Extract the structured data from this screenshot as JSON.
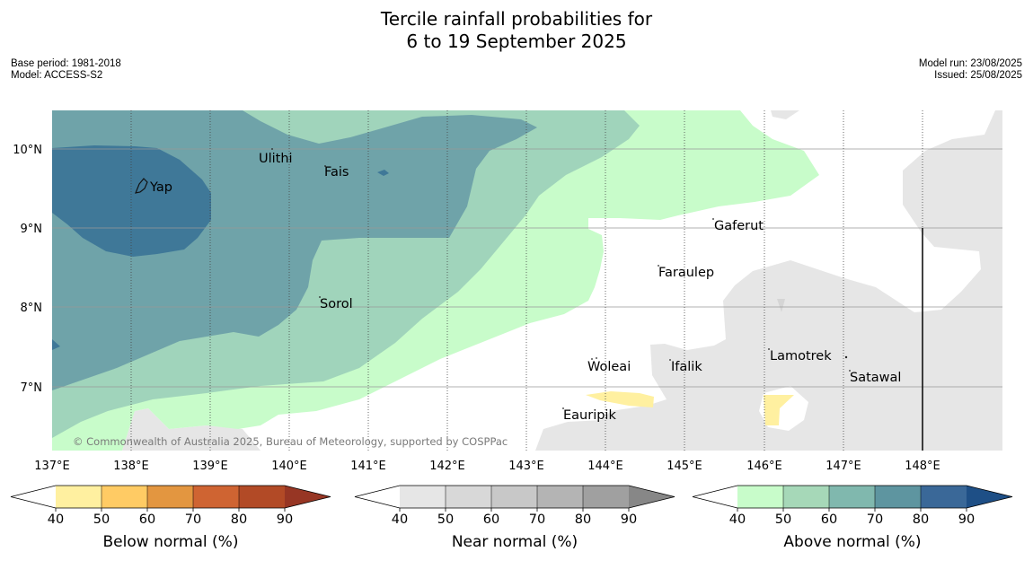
{
  "title_line1": "Tercile rainfall probabilities for",
  "title_line2": "6 to 19 September 2025",
  "base_period": "Base period: 1981-2018",
  "model": "Model: ACCESS-S2",
  "model_run": "Model run: 23/08/2025",
  "issued": "Issued: 25/08/2025",
  "copyright": "© Commonwealth of Australia 2025, Bureau of Meteorology, supported by COSPPac",
  "lat_labels": [
    "10°N",
    "9°N",
    "8°N",
    "7°N"
  ],
  "lon_labels": [
    "137°E",
    "138°E",
    "139°E",
    "140°E",
    "141°E",
    "142°E",
    "143°E",
    "144°E",
    "145°E",
    "146°E",
    "147°E",
    "148°E"
  ],
  "places": [
    "Ulithi",
    "Fais",
    "Yap",
    "Gaferut",
    "Faraulep",
    "Sorol",
    "Woleai",
    "Ifalik",
    "Lamotrek",
    "Satawal",
    "Eauripik"
  ],
  "colorbars": [
    {
      "label": "Below normal (%)",
      "ticks": [
        "40",
        "50",
        "60",
        "70",
        "80",
        "90"
      ],
      "colors": [
        "#ffffff",
        "#fff0a0",
        "#ffcb64",
        "#e39640",
        "#cf6432",
        "#b24a26",
        "#973624"
      ]
    },
    {
      "label": "Near normal (%)",
      "ticks": [
        "40",
        "50",
        "60",
        "70",
        "80",
        "90"
      ],
      "colors": [
        "#ffffff",
        "#e6e6e6",
        "#d8d8d8",
        "#c8c8c8",
        "#b4b4b4",
        "#a0a0a0",
        "#878787"
      ]
    },
    {
      "label": "Above normal (%)",
      "ticks": [
        "40",
        "50",
        "60",
        "70",
        "80",
        "90"
      ],
      "colors": [
        "#ffffff",
        "#c8fcca",
        "#a6d8b8",
        "#80b8ae",
        "#5e95a0",
        "#3a6898",
        "#1e4f86"
      ]
    }
  ]
}
